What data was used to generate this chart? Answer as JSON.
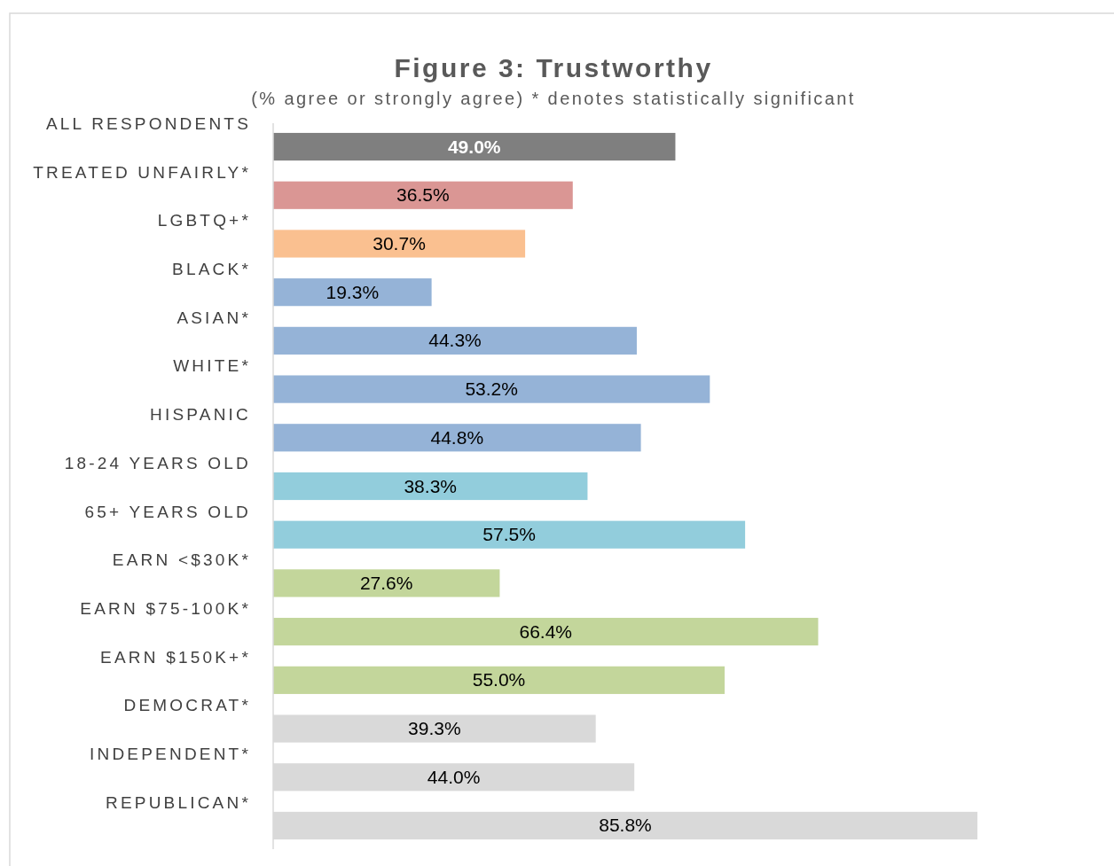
{
  "chart_data": {
    "type": "bar",
    "title": "Figure 3: Trustworthy",
    "subtitle": "(% agree or strongly agree) * denotes statistically significant",
    "categories": [
      "ALL RESPONDENTS",
      "TREATED UNFAIRLY*",
      "LGBTQ+*",
      "BLACK*",
      "ASIAN*",
      "WHITE*",
      "HISPANIC",
      "18-24 YEARS OLD",
      "65+ YEARS OLD",
      "EARN <$30K*",
      "EARN $75-100K*",
      "EARN $150K+*",
      "DEMOCRAT*",
      "INDEPENDENT*",
      "REPUBLICAN*"
    ],
    "values": [
      49.0,
      36.5,
      30.7,
      19.3,
      44.3,
      53.2,
      44.8,
      38.3,
      57.5,
      27.6,
      66.4,
      55.0,
      39.3,
      44.0,
      85.8
    ],
    "value_labels": [
      "49.0%",
      "36.5%",
      "30.7%",
      "19.3%",
      "44.3%",
      "53.2%",
      "44.8%",
      "38.3%",
      "57.5%",
      "27.6%",
      "66.4%",
      "55.0%",
      "39.3%",
      "44.0%",
      "85.8%"
    ],
    "colors": [
      "#7f7f7f",
      "#da9694",
      "#fac090",
      "#95b3d7",
      "#95b3d7",
      "#95b3d7",
      "#95b3d7",
      "#92cddc",
      "#92cddc",
      "#c3d69b",
      "#c3d69b",
      "#c3d69b",
      "#d9d9d9",
      "#d9d9d9",
      "#d9d9d9"
    ],
    "orientation": "horizontal"
  }
}
